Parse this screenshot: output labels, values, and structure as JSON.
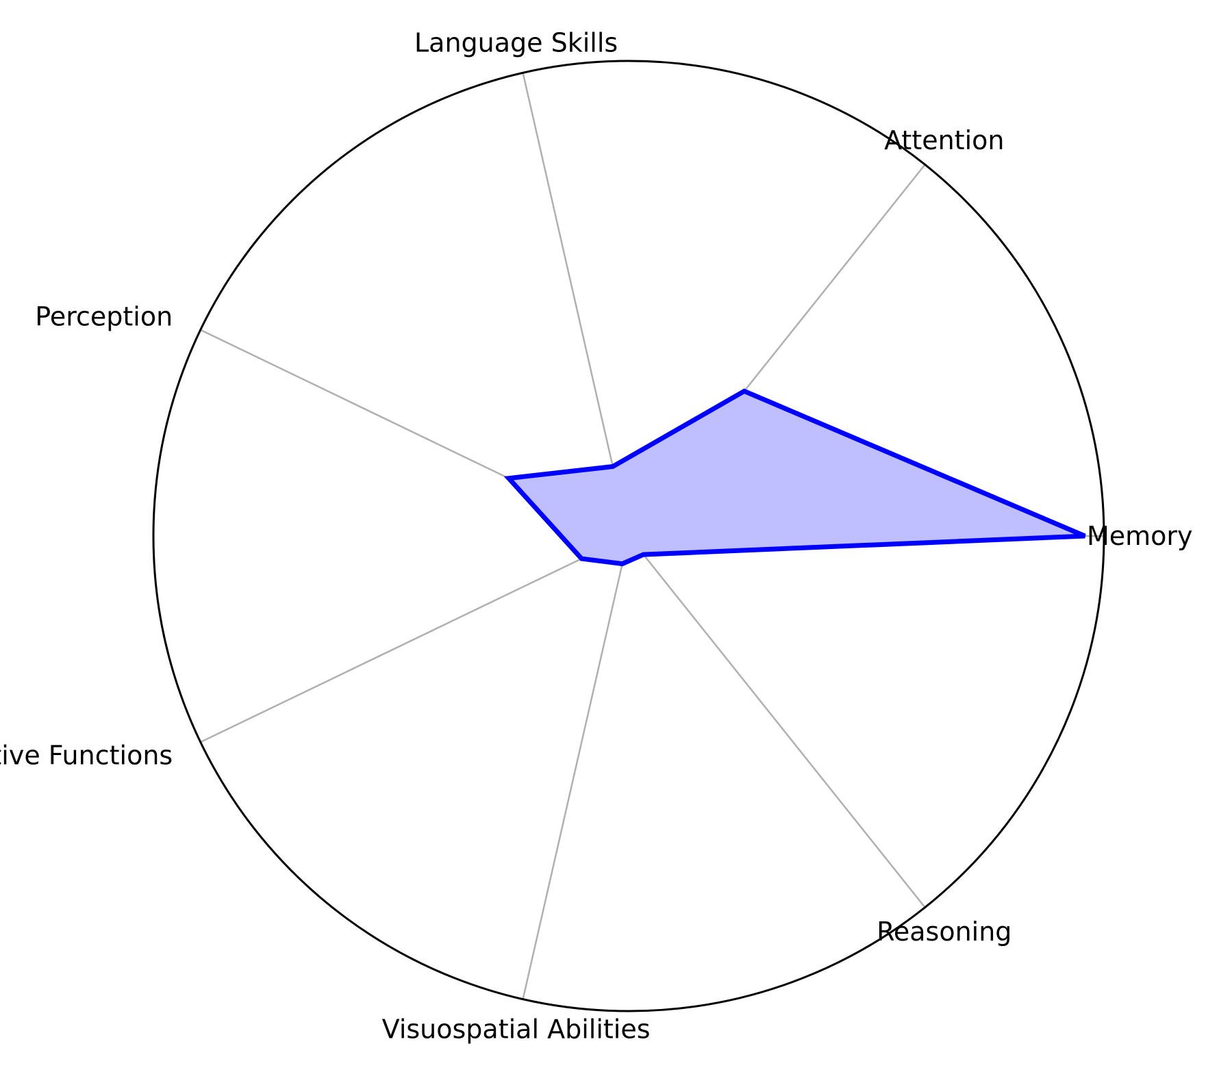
{
  "chart_data": {
    "type": "radar",
    "title": "",
    "categories": [
      "Memory",
      "Attention",
      "Language Skills",
      "Perception",
      "Executive Functions",
      "Visuospatial Abilities",
      "Reasoning"
    ],
    "series": [
      {
        "values": [
          4.8,
          1.95,
          0.75,
          1.4,
          0.55,
          0.3,
          0.25
        ]
      }
    ],
    "rlim": [
      0,
      5
    ],
    "grid": true,
    "line_color": "#0000ff",
    "fill_color": "#bfbfff",
    "spoke_color": "#b0b0b0",
    "outline_color": "#000000"
  }
}
